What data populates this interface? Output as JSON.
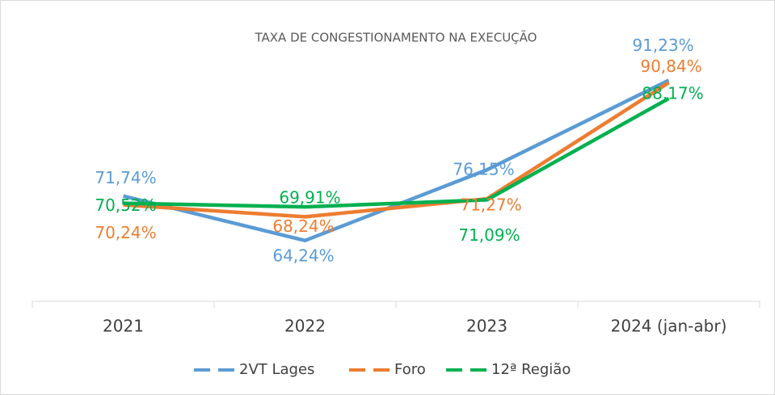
{
  "chart_data": {
    "type": "line",
    "title": "TAXA DE CONGESTIONAMENTO NA EXECUÇÃO",
    "categories": [
      "2021",
      "2022",
      "2023",
      "2024 (jan-abr)"
    ],
    "ylim": [
      54,
      100
    ],
    "legend": "bottom",
    "series": [
      {
        "name": "2VT Lages",
        "color": "#5b9bd5",
        "values": [
          71.74,
          64.24,
          76.15,
          91.23
        ],
        "value_labels": [
          "71,74%",
          "64,24%",
          "76,15%",
          "91,23%"
        ]
      },
      {
        "name": "Foro",
        "color": "#ed7d31",
        "values": [
          70.24,
          68.24,
          71.27,
          90.84
        ],
        "value_labels": [
          "70,24%",
          "68,24%",
          "71,27%",
          "90,84%"
        ]
      },
      {
        "name": "12ª Região",
        "color": "#00b050",
        "values": [
          70.52,
          69.91,
          71.09,
          88.17
        ],
        "value_labels": [
          "70,52%",
          "69,91%",
          "71,09%",
          "88,17%"
        ]
      }
    ]
  }
}
